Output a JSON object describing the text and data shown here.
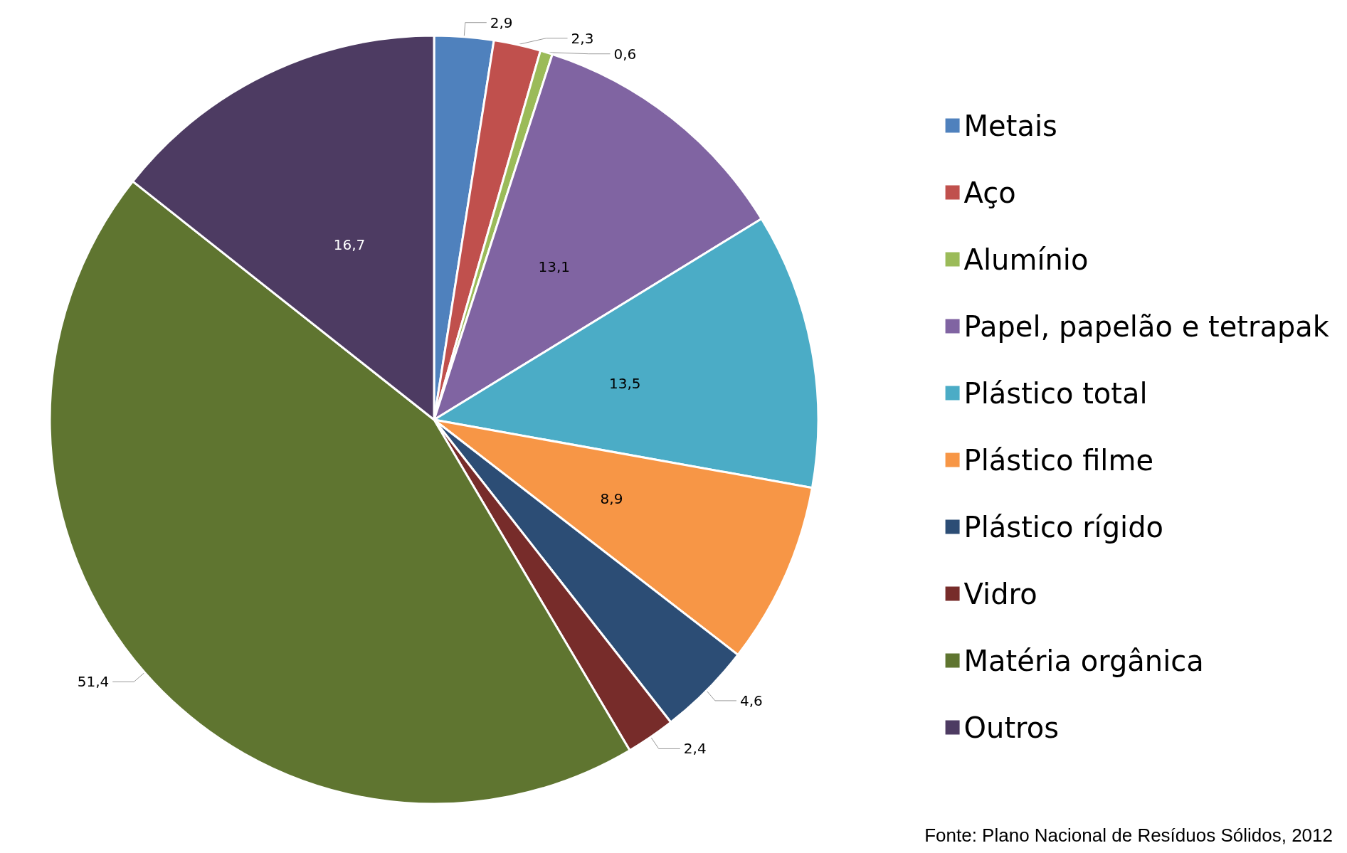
{
  "chart_data": {
    "type": "pie",
    "categories": [
      "Metais",
      "Aço",
      "Alumínio",
      "Papel, papelão e tetrapak",
      "Plástico total",
      "Plástico filme",
      "Plástico rígido",
      "Vidro",
      "Matéria orgânica",
      "Outros"
    ],
    "values": [
      2.9,
      2.3,
      0.6,
      13.1,
      13.5,
      8.9,
      4.6,
      2.4,
      51.4,
      16.7
    ],
    "colors": [
      "#4f81bd",
      "#c0504d",
      "#9bbb59",
      "#8064a2",
      "#4bacc6",
      "#f79646",
      "#2c4d75",
      "#772c2a",
      "#5f7530",
      "#4d3b62"
    ],
    "value_labels": [
      "2,9",
      "2,3",
      "0,6",
      "13,1",
      "13,5",
      "8,9",
      "4,6",
      "2,4",
      "51,4",
      "16,7"
    ],
    "legend": "right",
    "annotations": [
      "Fonte: Plano Nacional de Resíduos Sólidos, 2012"
    ]
  }
}
